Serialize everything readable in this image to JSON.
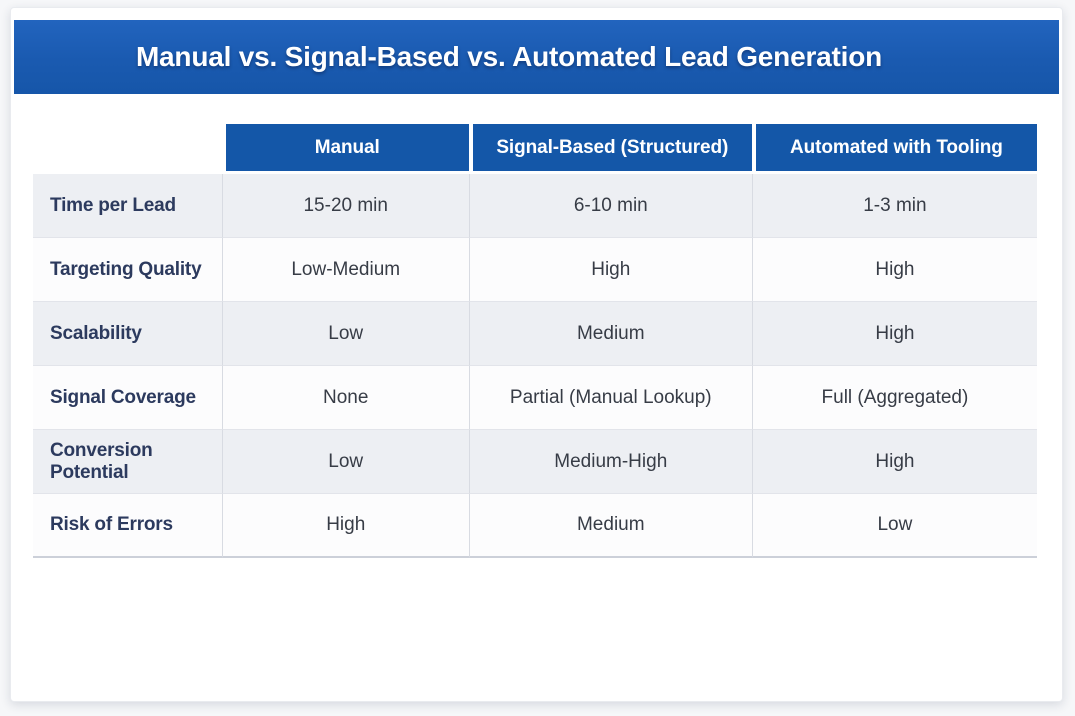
{
  "banner": {
    "title": "Manual vs. Signal-Based vs. Automated Lead Generation",
    "bg_color": "#1a5ab0",
    "text_color": "#ffffff"
  },
  "table": {
    "columns": [
      "",
      "Manual",
      "Signal-Based (Structured)",
      "Automated with Tooling"
    ],
    "rows": [
      {
        "label": "Time per Lead",
        "values": [
          "15-20 min",
          "6-10 min",
          "1-3 min"
        ]
      },
      {
        "label": "Targeting Quality",
        "values": [
          "Low-Medium",
          "High",
          "High"
        ]
      },
      {
        "label": "Scalability",
        "values": [
          "Low",
          "Medium",
          "High"
        ]
      },
      {
        "label": "Signal Coverage",
        "values": [
          "None",
          "Partial (Manual Lookup)",
          "Full (Aggregated)"
        ]
      },
      {
        "label": "Conversion Potential",
        "values": [
          "Low",
          "Medium-High",
          "High"
        ]
      },
      {
        "label": "Risk of Errors",
        "values": [
          "High",
          "Medium",
          "Low"
        ]
      }
    ],
    "colors": {
      "header_bg": "#1457a8",
      "header_text": "#ffffff",
      "shaded_row_bg": "#edeff3",
      "plain_row_bg": "#fcfcfd",
      "label_text": "#2c3a5e",
      "value_text": "#373c46",
      "divider": "#d8dbe2"
    }
  },
  "chart_data": {
    "type": "table",
    "title": "Manual vs. Signal-Based vs. Automated Lead Generation",
    "columns": [
      "",
      "Manual",
      "Signal-Based (Structured)",
      "Automated with Tooling"
    ],
    "rows": [
      [
        "Time per Lead",
        "15-20 min",
        "6-10 min",
        "1-3 min"
      ],
      [
        "Targeting Quality",
        "Low-Medium",
        "High",
        "High"
      ],
      [
        "Scalability",
        "Low",
        "Medium",
        "High"
      ],
      [
        "Signal Coverage",
        "None",
        "Partial (Manual Lookup)",
        "Full (Aggregated)"
      ],
      [
        "Conversion Potential",
        "Low",
        "Medium-High",
        "High"
      ],
      [
        "Risk of Errors",
        "High",
        "Medium",
        "Low"
      ]
    ],
    "layout_hints": {
      "row_shading": "odd rows shaded light gray-blue",
      "header_style": "blue background, white bold text",
      "first_column": "row labels, bold dark navy, left aligned"
    }
  }
}
